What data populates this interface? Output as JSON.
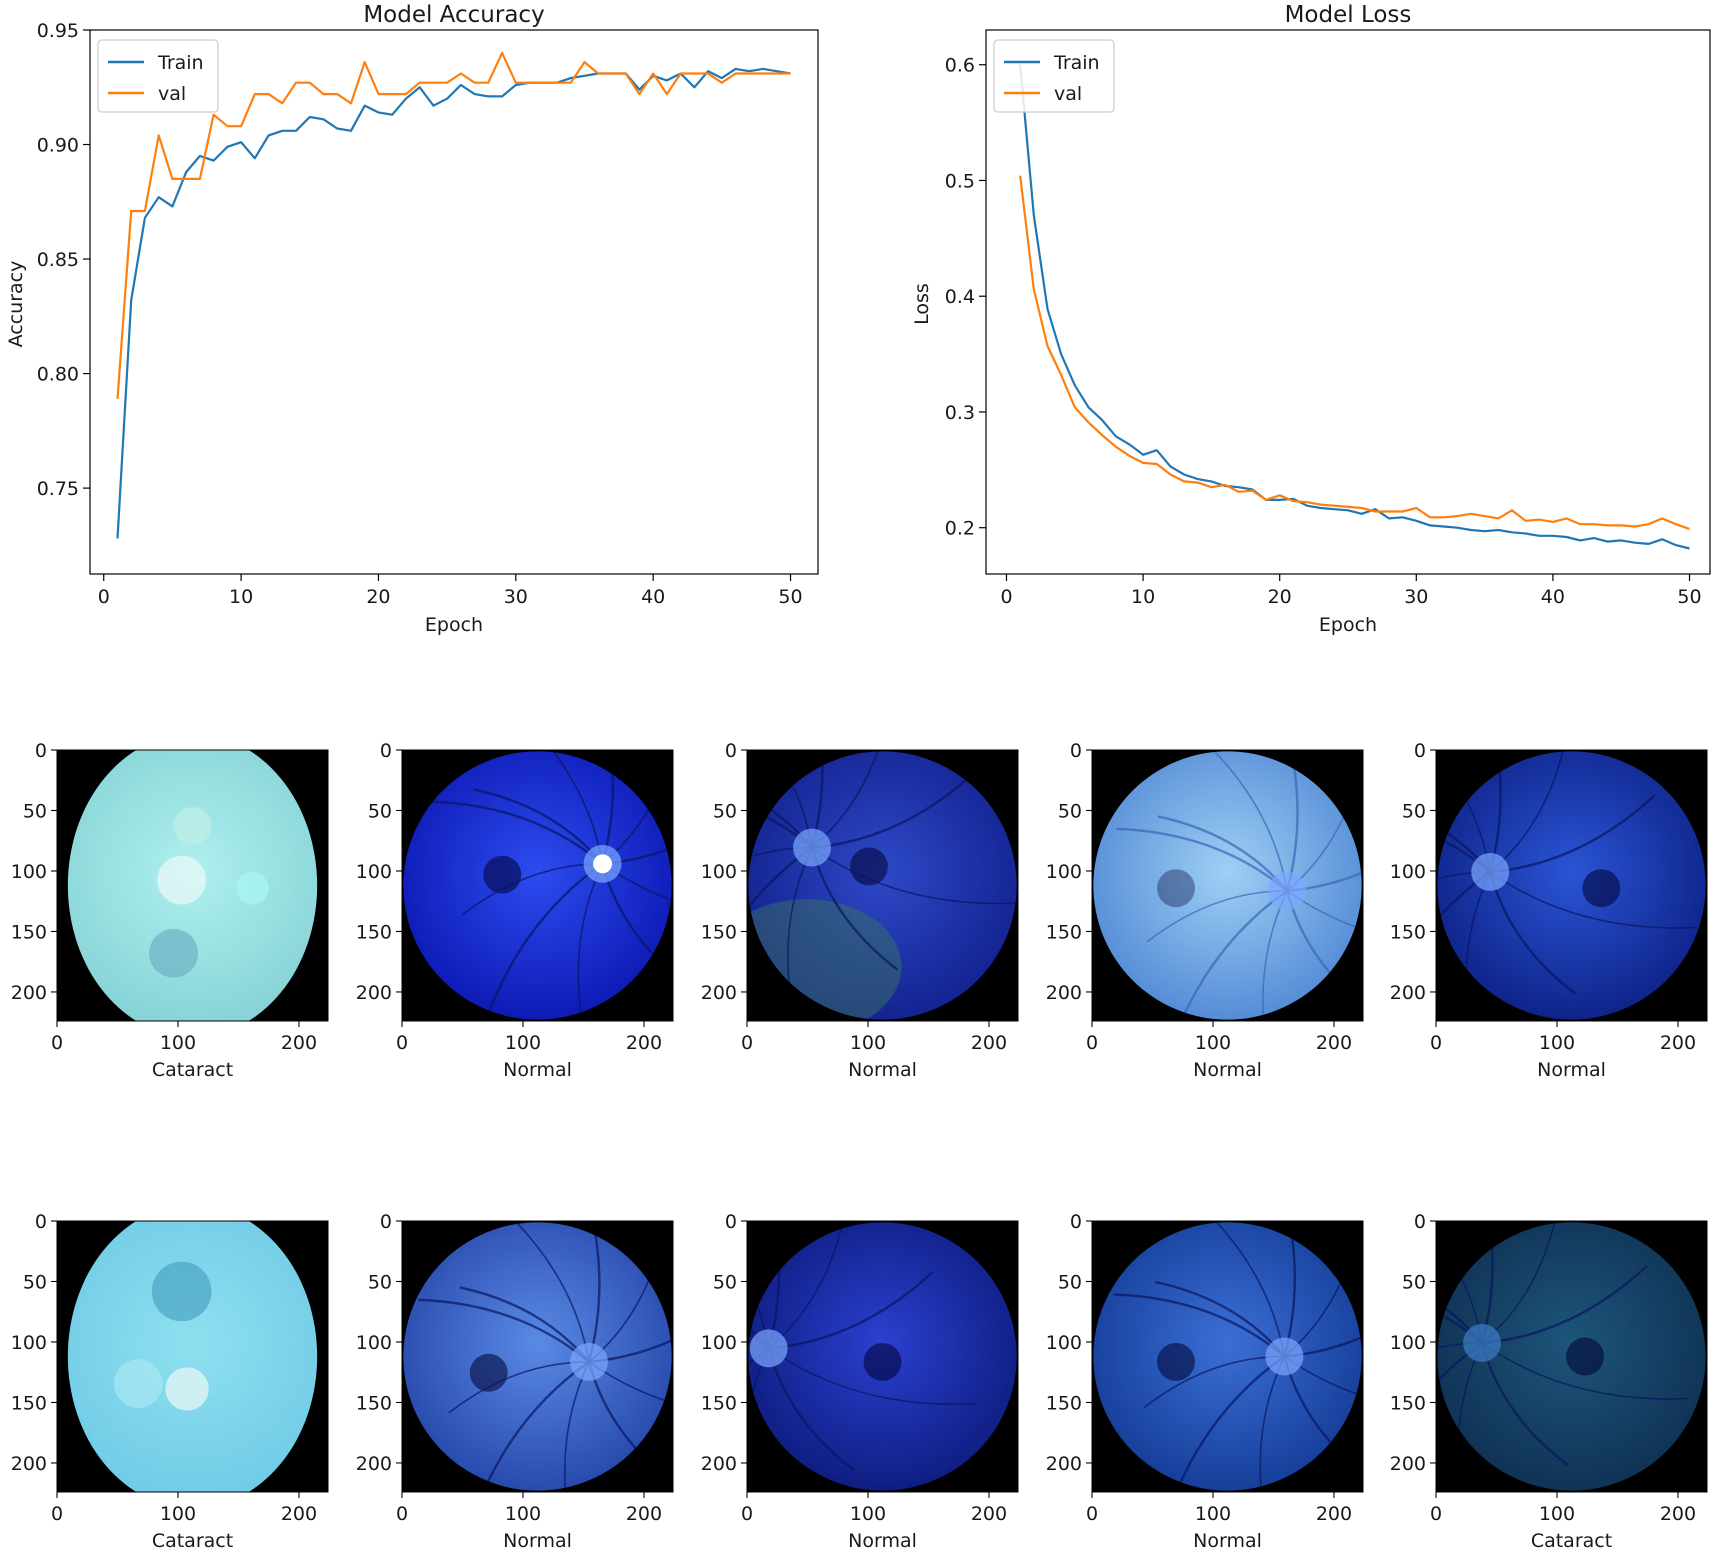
{
  "colors": {
    "train": "#1f77b4",
    "val": "#ff7f0e",
    "axis": "#000000",
    "image_bg": "#000000"
  },
  "chart_data": [
    {
      "type": "line",
      "title": "Model Accuracy",
      "xlabel": "Epoch",
      "ylabel": "Accuracy",
      "xlim": [
        -1,
        52
      ],
      "ylim": [
        0.7125,
        0.95
      ],
      "xticks": [
        0,
        10,
        20,
        30,
        40,
        50
      ],
      "yticks": [
        0.75,
        0.8,
        0.85,
        0.9,
        0.95
      ],
      "ytick_labels": [
        "0.75",
        "0.80",
        "0.85",
        "0.90",
        "0.95"
      ],
      "legend": {
        "position": "top-left",
        "entries": [
          "Train",
          "val"
        ]
      },
      "grid": false,
      "x": [
        1,
        2,
        3,
        4,
        5,
        6,
        7,
        8,
        9,
        10,
        11,
        12,
        13,
        14,
        15,
        16,
        17,
        18,
        19,
        20,
        21,
        22,
        23,
        24,
        25,
        26,
        27,
        28,
        29,
        30,
        31,
        32,
        33,
        34,
        35,
        36,
        37,
        38,
        39,
        40,
        41,
        42,
        43,
        44,
        45,
        46,
        47,
        48,
        49,
        50
      ],
      "series": [
        {
          "name": "Train",
          "color": "#1f77b4",
          "values": [
            0.728,
            0.832,
            0.868,
            0.877,
            0.873,
            0.888,
            0.895,
            0.893,
            0.899,
            0.901,
            0.894,
            0.904,
            0.906,
            0.906,
            0.912,
            0.911,
            0.907,
            0.906,
            0.917,
            0.914,
            0.913,
            0.92,
            0.925,
            0.917,
            0.92,
            0.926,
            0.922,
            0.921,
            0.921,
            0.926,
            0.927,
            0.927,
            0.927,
            0.929,
            0.93,
            0.931,
            0.931,
            0.931,
            0.924,
            0.93,
            0.928,
            0.931,
            0.925,
            0.932,
            0.929,
            0.933,
            0.932,
            0.933,
            0.932,
            0.931
          ]
        },
        {
          "name": "val",
          "color": "#ff7f0e",
          "values": [
            0.789,
            0.871,
            0.871,
            0.904,
            0.885,
            0.885,
            0.885,
            0.913,
            0.908,
            0.908,
            0.922,
            0.922,
            0.918,
            0.927,
            0.927,
            0.922,
            0.922,
            0.918,
            0.936,
            0.922,
            0.922,
            0.922,
            0.927,
            0.927,
            0.927,
            0.931,
            0.927,
            0.927,
            0.94,
            0.927,
            0.927,
            0.927,
            0.927,
            0.927,
            0.936,
            0.931,
            0.931,
            0.931,
            0.922,
            0.931,
            0.922,
            0.931,
            0.931,
            0.931,
            0.927,
            0.931,
            0.931,
            0.931,
            0.931,
            0.931
          ]
        }
      ]
    },
    {
      "type": "line",
      "title": "Model Loss",
      "xlabel": "Epoch",
      "ylabel": "Loss",
      "xlim": [
        -1.5,
        51.5
      ],
      "ylim": [
        0.16,
        0.63
      ],
      "xticks": [
        0,
        10,
        20,
        30,
        40,
        50
      ],
      "yticks": [
        0.2,
        0.3,
        0.4,
        0.5,
        0.6
      ],
      "ytick_labels": [
        "0.2",
        "0.3",
        "0.4",
        "0.5",
        "0.6"
      ],
      "legend": {
        "position": "top-left",
        "entries": [
          "Train",
          "val"
        ]
      },
      "grid": false,
      "x": [
        1,
        2,
        3,
        4,
        5,
        6,
        7,
        8,
        9,
        10,
        11,
        12,
        13,
        14,
        15,
        16,
        17,
        18,
        19,
        20,
        21,
        22,
        23,
        24,
        25,
        26,
        27,
        28,
        29,
        30,
        31,
        32,
        33,
        34,
        35,
        36,
        37,
        38,
        39,
        40,
        41,
        42,
        43,
        44,
        45,
        46,
        47,
        48,
        49,
        50
      ],
      "series": [
        {
          "name": "Train",
          "color": "#1f77b4",
          "values": [
            0.6,
            0.47,
            0.389,
            0.35,
            0.323,
            0.304,
            0.293,
            0.279,
            0.272,
            0.263,
            0.267,
            0.253,
            0.246,
            0.242,
            0.24,
            0.236,
            0.235,
            0.233,
            0.224,
            0.224,
            0.225,
            0.219,
            0.217,
            0.216,
            0.215,
            0.212,
            0.216,
            0.208,
            0.209,
            0.206,
            0.202,
            0.201,
            0.2,
            0.198,
            0.197,
            0.198,
            0.196,
            0.195,
            0.193,
            0.193,
            0.192,
            0.189,
            0.191,
            0.188,
            0.189,
            0.187,
            0.186,
            0.19,
            0.185,
            0.182
          ]
        },
        {
          "name": "val",
          "color": "#ff7f0e",
          "values": [
            0.504,
            0.406,
            0.357,
            0.332,
            0.304,
            0.291,
            0.28,
            0.27,
            0.262,
            0.256,
            0.255,
            0.246,
            0.24,
            0.239,
            0.235,
            0.237,
            0.231,
            0.232,
            0.224,
            0.228,
            0.223,
            0.222,
            0.22,
            0.219,
            0.218,
            0.217,
            0.214,
            0.214,
            0.214,
            0.217,
            0.209,
            0.209,
            0.21,
            0.212,
            0.21,
            0.208,
            0.215,
            0.206,
            0.207,
            0.205,
            0.208,
            0.203,
            0.203,
            0.202,
            0.202,
            0.201,
            0.203,
            0.208,
            0.203,
            0.199
          ]
        }
      ]
    }
  ],
  "image_panels": {
    "x_ticks": [
      "0",
      "100",
      "200"
    ],
    "y_ticks": [
      "0",
      "50",
      "100",
      "150",
      "200"
    ],
    "rows": [
      [
        {
          "label": "Cataract",
          "type": "cataract",
          "tint": [
            "#aef0ee",
            "#86d2d6"
          ],
          "spots": [
            [
              0.46,
              0.48,
              0.09,
              "#e8f8f6"
            ],
            [
              0.72,
              0.51,
              0.06,
              "#a8f4f4"
            ],
            [
              0.43,
              0.75,
              0.09,
              "#6fb4c6"
            ],
            [
              0.5,
              0.28,
              0.07,
              "#bfeee8"
            ]
          ]
        },
        {
          "label": "Normal",
          "type": "retina",
          "tint": [
            "#2c4cf0",
            "#0b16b0"
          ],
          "disc": [
            0.74,
            0.42
          ],
          "macula": [
            0.37,
            0.46
          ],
          "bright": true
        },
        {
          "label": "Normal",
          "type": "retina",
          "tint": [
            "#2e49c7",
            "#111f8c"
          ],
          "disc": [
            0.24,
            0.36
          ],
          "macula": [
            0.45,
            0.43
          ],
          "green_edge": true
        },
        {
          "label": "Normal",
          "type": "retina",
          "tint": [
            "#9ed0f4",
            "#4e86d4"
          ],
          "disc": [
            0.72,
            0.52
          ],
          "macula": [
            0.31,
            0.51
          ],
          "light": true
        },
        {
          "label": "Normal",
          "type": "retina",
          "tint": [
            "#2a55d6",
            "#0c1f82"
          ],
          "disc": [
            0.2,
            0.45
          ],
          "macula": [
            0.61,
            0.51
          ]
        }
      ],
      [
        {
          "label": "Cataract",
          "type": "cataract",
          "tint": [
            "#8fe0ef",
            "#6fcbe6"
          ],
          "spots": [
            [
              0.46,
              0.26,
              0.11,
              "#4fa8c6"
            ],
            [
              0.48,
              0.62,
              0.08,
              "#e6f6f4"
            ],
            [
              0.3,
              0.6,
              0.09,
              "#a6e6f2"
            ]
          ]
        },
        {
          "label": "Normal",
          "type": "retina",
          "tint": [
            "#5a8ae6",
            "#2344a8"
          ],
          "disc": [
            0.69,
            0.52
          ],
          "macula": [
            0.32,
            0.56
          ],
          "bright": false
        },
        {
          "label": "Normal",
          "type": "retina",
          "tint": [
            "#2a40d0",
            "#0d1a7a"
          ],
          "disc": [
            0.08,
            0.47
          ],
          "macula": [
            0.5,
            0.52
          ]
        },
        {
          "label": "Normal",
          "type": "retina",
          "tint": [
            "#3b6fd6",
            "#123a94"
          ],
          "disc": [
            0.71,
            0.5
          ],
          "macula": [
            0.31,
            0.52
          ]
        },
        {
          "label": "Cataract",
          "type": "retina",
          "tint": [
            "#1d557a",
            "#0e2f52"
          ],
          "disc": [
            0.17,
            0.45
          ],
          "macula": [
            0.55,
            0.5
          ],
          "dim": true
        }
      ]
    ]
  }
}
